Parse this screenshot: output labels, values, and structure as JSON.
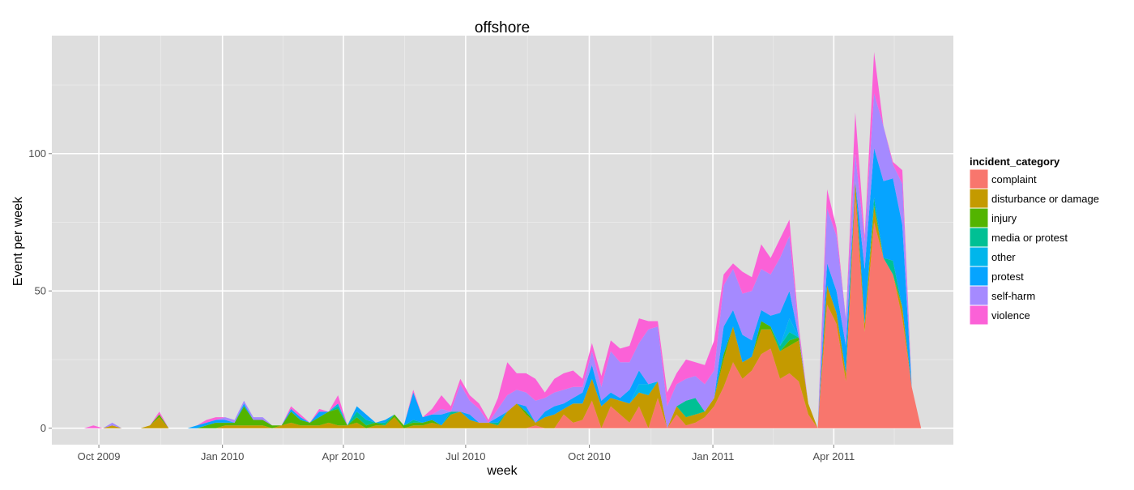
{
  "chart_data": {
    "type": "area",
    "stacked": true,
    "title": "offshore",
    "xlabel": "week",
    "ylabel": "Event per week",
    "x_range": [
      "2009-08-27",
      "2011-06-29"
    ],
    "ylim": [
      -6,
      143
    ],
    "y_ticks": [
      0,
      50,
      100
    ],
    "x_ticks": [
      {
        "date": "2009-10-01",
        "label": "Oct 2009"
      },
      {
        "date": "2010-01-01",
        "label": "Jan 2010"
      },
      {
        "date": "2010-04-01",
        "label": "Apr 2010"
      },
      {
        "date": "2010-07-01",
        "label": "Jul 2010"
      },
      {
        "date": "2010-10-01",
        "label": "Oct 2010"
      },
      {
        "date": "2011-01-01",
        "label": "Jan 2011"
      },
      {
        "date": "2011-04-01",
        "label": "Apr 2011"
      }
    ],
    "grid": true,
    "background": "#DEDEDE",
    "legend": {
      "title": "incident_category",
      "position": "right"
    },
    "x": [
      "2009-09-20",
      "2009-09-27",
      "2009-10-04",
      "2009-10-11",
      "2009-10-18",
      "2009-10-25",
      "2009-11-01",
      "2009-11-08",
      "2009-11-15",
      "2009-11-22",
      "2009-11-29",
      "2009-12-06",
      "2009-12-13",
      "2009-12-20",
      "2009-12-27",
      "2010-01-03",
      "2010-01-10",
      "2010-01-17",
      "2010-01-24",
      "2010-01-31",
      "2010-02-07",
      "2010-02-14",
      "2010-02-21",
      "2010-02-28",
      "2010-03-07",
      "2010-03-14",
      "2010-03-21",
      "2010-03-28",
      "2010-04-04",
      "2010-04-11",
      "2010-04-18",
      "2010-04-25",
      "2010-05-02",
      "2010-05-09",
      "2010-05-16",
      "2010-05-23",
      "2010-05-30",
      "2010-06-06",
      "2010-06-13",
      "2010-06-20",
      "2010-06-27",
      "2010-07-04",
      "2010-07-11",
      "2010-07-18",
      "2010-07-25",
      "2010-08-01",
      "2010-08-08",
      "2010-08-15",
      "2010-08-22",
      "2010-08-29",
      "2010-09-05",
      "2010-09-12",
      "2010-09-19",
      "2010-09-26",
      "2010-10-03",
      "2010-10-10",
      "2010-10-17",
      "2010-10-24",
      "2010-10-31",
      "2010-11-07",
      "2010-11-14",
      "2010-11-21",
      "2010-11-28",
      "2010-12-05",
      "2010-12-12",
      "2010-12-19",
      "2010-12-26",
      "2011-01-02",
      "2011-01-09",
      "2011-01-16",
      "2011-01-23",
      "2011-01-30",
      "2011-02-06",
      "2011-02-13",
      "2011-02-20",
      "2011-02-27",
      "2011-03-06",
      "2011-03-13",
      "2011-03-20",
      "2011-03-27",
      "2011-04-03",
      "2011-04-10",
      "2011-04-17",
      "2011-04-24",
      "2011-05-01",
      "2011-05-08",
      "2011-05-15",
      "2011-05-22",
      "2011-05-29",
      "2011-06-05"
    ],
    "series": [
      {
        "name": "complaint",
        "color": "#F8766D",
        "values": [
          0,
          0,
          0,
          0,
          0,
          0,
          0,
          0,
          0,
          0,
          0,
          0,
          0,
          0,
          0,
          0,
          0,
          0,
          0,
          0,
          0,
          0,
          0,
          0,
          0,
          0,
          0,
          0,
          0,
          0,
          0,
          0,
          0,
          0,
          0,
          0,
          0,
          0,
          0,
          0,
          0,
          0,
          0,
          0,
          0,
          0,
          0,
          0,
          1,
          0,
          0,
          5,
          2,
          3,
          10,
          0,
          8,
          5,
          2,
          8,
          0,
          11,
          0,
          5,
          1,
          2,
          4,
          8,
          15,
          24,
          18,
          21,
          27,
          29,
          18,
          20,
          17,
          5,
          0,
          45,
          38,
          17,
          85,
          35,
          75,
          62,
          56,
          40,
          15,
          0
        ]
      },
      {
        "name": "disturbance or damage",
        "color": "#C49A00",
        "values": [
          0,
          0,
          0,
          1,
          0,
          0,
          0,
          1,
          4,
          0,
          0,
          0,
          0,
          0,
          0,
          1,
          1,
          1,
          1,
          1,
          0,
          1,
          2,
          1,
          1,
          1,
          2,
          1,
          1,
          2,
          0,
          1,
          1,
          4,
          0,
          1,
          1,
          2,
          1,
          5,
          6,
          3,
          2,
          2,
          1,
          6,
          9,
          5,
          1,
          4,
          5,
          2,
          7,
          6,
          8,
          8,
          3,
          5,
          7,
          5,
          12,
          6,
          0,
          3,
          3,
          3,
          2,
          3,
          10,
          13,
          6,
          5,
          9,
          7,
          10,
          10,
          15,
          4,
          0,
          7,
          4,
          3,
          5,
          3,
          6,
          0,
          0,
          4,
          0,
          0
        ]
      },
      {
        "name": "injury",
        "color": "#53B400",
        "values": [
          0,
          0,
          0,
          0,
          0,
          0,
          0,
          0,
          1,
          0,
          0,
          0,
          0,
          1,
          2,
          1,
          1,
          7,
          2,
          2,
          1,
          0,
          4,
          2,
          1,
          3,
          4,
          6,
          0,
          2,
          1,
          1,
          0,
          1,
          1,
          1,
          1,
          1,
          0,
          0,
          0,
          0,
          0,
          0,
          0,
          0,
          0,
          1,
          0,
          0,
          0,
          0,
          0,
          0,
          0,
          0,
          0,
          0,
          0,
          0,
          0,
          0,
          0,
          0,
          0,
          0,
          0,
          0,
          2,
          0,
          0,
          0,
          3,
          1,
          0,
          2,
          1,
          0,
          0,
          0,
          0,
          0,
          0,
          0,
          0,
          0,
          0,
          0,
          0,
          0
        ]
      },
      {
        "name": "media or protest",
        "color": "#00C094",
        "values": [
          0,
          0,
          0,
          0,
          0,
          0,
          0,
          0,
          0,
          0,
          0,
          0,
          0,
          0,
          0,
          0,
          0,
          0,
          0,
          0,
          0,
          0,
          0,
          0,
          0,
          0,
          0,
          1,
          0,
          2,
          2,
          0,
          1,
          0,
          0,
          1,
          0,
          0,
          0,
          1,
          0,
          0,
          0,
          0,
          1,
          0,
          0,
          0,
          0,
          0,
          0,
          0,
          0,
          0,
          0,
          0,
          0,
          0,
          0,
          0,
          0,
          0,
          0,
          0,
          6,
          6,
          0,
          0,
          0,
          0,
          0,
          0,
          0,
          0,
          2,
          3,
          0,
          0,
          0,
          0,
          0,
          0,
          0,
          0,
          3,
          0,
          5,
          0,
          0,
          0
        ]
      },
      {
        "name": "other",
        "color": "#00B6EB",
        "values": [
          0,
          0,
          0,
          0,
          0,
          0,
          0,
          0,
          0,
          0,
          0,
          0,
          0,
          0,
          0,
          0,
          0,
          0,
          0,
          0,
          0,
          0,
          0,
          0,
          0,
          0,
          0,
          1,
          0,
          0,
          0,
          0,
          0,
          0,
          0,
          0,
          0,
          0,
          0,
          0,
          0,
          0,
          0,
          0,
          0,
          0,
          0,
          0,
          0,
          0,
          0,
          0,
          0,
          0,
          0,
          0,
          0,
          0,
          0,
          3,
          4,
          0,
          0,
          0,
          0,
          0,
          0,
          0,
          0,
          0,
          0,
          0,
          0,
          0,
          0,
          5,
          0,
          0,
          0,
          0,
          0,
          0,
          0,
          0,
          0,
          0,
          0,
          0,
          0,
          0
        ]
      },
      {
        "name": "protest",
        "color": "#06A4FF",
        "values": [
          0,
          0,
          0,
          0,
          0,
          0,
          0,
          0,
          0,
          0,
          0,
          0,
          1,
          1,
          1,
          1,
          0,
          1,
          0,
          0,
          0,
          0,
          1,
          1,
          0,
          2,
          0,
          0,
          0,
          2,
          2,
          0,
          1,
          0,
          0,
          10,
          2,
          2,
          4,
          0,
          0,
          2,
          0,
          0,
          2,
          0,
          0,
          2,
          0,
          2,
          3,
          2,
          2,
          4,
          5,
          2,
          2,
          1,
          5,
          5,
          0,
          0,
          0,
          0,
          0,
          0,
          0,
          0,
          10,
          6,
          10,
          6,
          4,
          4,
          12,
          10,
          0,
          0,
          0,
          8,
          8,
          10,
          0,
          20,
          18,
          28,
          30,
          30,
          0,
          0
        ]
      },
      {
        "name": "self-harm",
        "color": "#A58AFF",
        "values": [
          0,
          0,
          0,
          1,
          0,
          0,
          0,
          0,
          0,
          0,
          0,
          0,
          0,
          0,
          0,
          1,
          1,
          1,
          1,
          1,
          0,
          0,
          0,
          0,
          0,
          0,
          0,
          0,
          0,
          0,
          0,
          0,
          0,
          0,
          0,
          0,
          0,
          0,
          2,
          0,
          10,
          5,
          5,
          0,
          3,
          6,
          5,
          5,
          8,
          5,
          5,
          5,
          4,
          2,
          5,
          5,
          15,
          13,
          10,
          10,
          20,
          20,
          8,
          8,
          8,
          8,
          10,
          10,
          15,
          15,
          15,
          18,
          15,
          15,
          20,
          20,
          2,
          0,
          0,
          20,
          20,
          10,
          10,
          10,
          20,
          20,
          5,
          15,
          0,
          0
        ]
      },
      {
        "name": "violence",
        "color": "#FB61D7",
        "values": [
          0,
          1,
          0,
          0,
          0,
          0,
          0,
          0,
          1,
          0,
          0,
          0,
          0,
          1,
          1,
          0,
          0,
          0,
          0,
          0,
          0,
          0,
          1,
          1,
          0,
          1,
          0,
          3,
          0,
          0,
          0,
          0,
          0,
          0,
          0,
          1,
          0,
          2,
          5,
          2,
          2,
          2,
          2,
          1,
          4,
          12,
          6,
          7,
          8,
          2,
          5,
          6,
          6,
          3,
          3,
          4,
          4,
          5,
          6,
          9,
          3,
          2,
          5,
          4,
          7,
          5,
          7,
          11,
          4,
          2,
          8,
          5,
          9,
          6,
          7,
          6,
          2,
          0,
          0,
          7,
          3,
          0,
          15,
          2,
          15,
          0,
          1,
          5,
          0,
          0
        ]
      }
    ]
  }
}
